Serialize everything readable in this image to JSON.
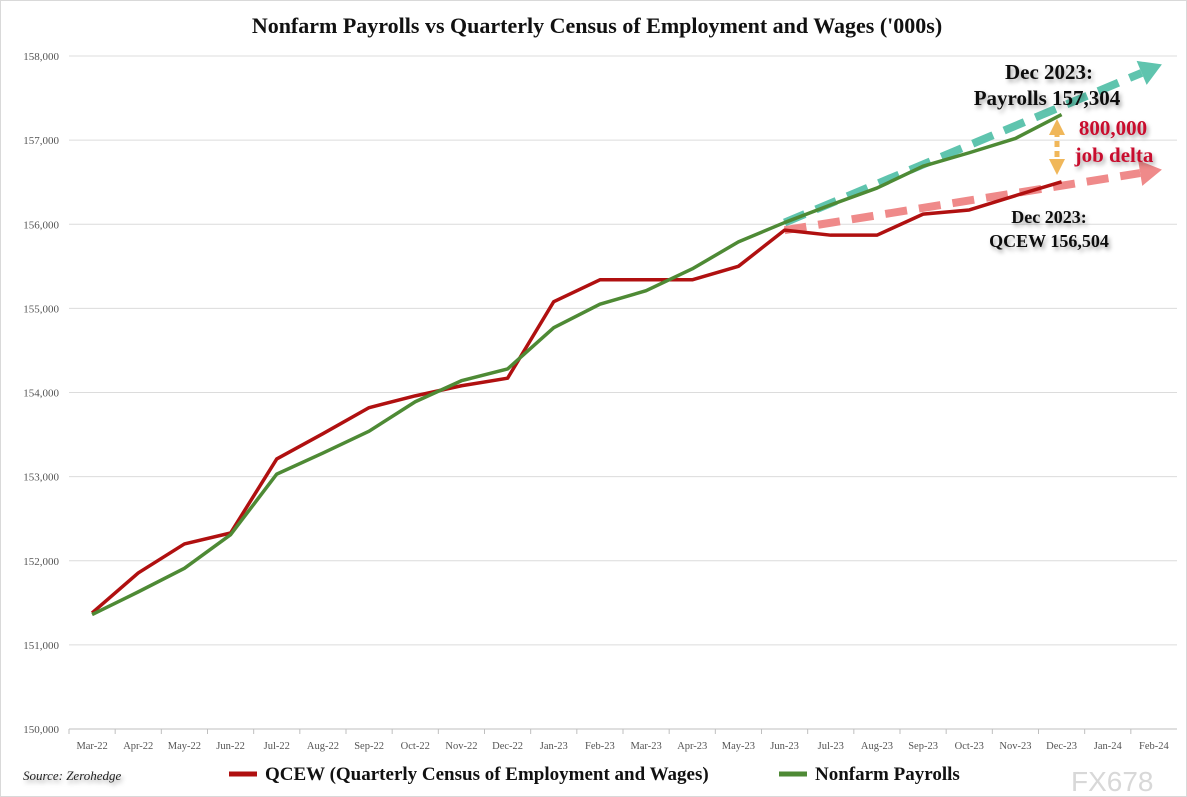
{
  "chart_data": {
    "type": "line",
    "title": "Nonfarm Payrolls vs Quarterly Census of Employment and Wages ('000s)",
    "xlabel": "",
    "ylabel": "",
    "ylim": [
      150000,
      158000
    ],
    "grid": true,
    "legend_position": "bottom",
    "yticks": [
      "150,000",
      "151,000",
      "152,000",
      "153,000",
      "154,000",
      "155,000",
      "156,000",
      "157,000",
      "158,000"
    ],
    "categories": [
      "Mar-22",
      "Apr-22",
      "May-22",
      "Jun-22",
      "Jul-22",
      "Aug-22",
      "Sep-22",
      "Oct-22",
      "Nov-22",
      "Dec-22",
      "Jan-23",
      "Feb-23",
      "Mar-23",
      "Apr-23",
      "May-23",
      "Jun-23",
      "Jul-23",
      "Aug-23",
      "Sep-23",
      "Oct-23",
      "Nov-23",
      "Dec-23",
      "Jan-24",
      "Feb-24"
    ],
    "series": [
      {
        "name": "QCEW (Quarterly Census of Employment and Wages)",
        "color": "#b01010",
        "values": [
          151380,
          151855,
          152200,
          152330,
          153210,
          153510,
          153820,
          153960,
          154080,
          154170,
          155080,
          155340,
          155340,
          155340,
          155500,
          155930,
          155870,
          155870,
          156120,
          156170,
          156340,
          156504,
          null,
          null
        ]
      },
      {
        "name": "Nonfarm Payrolls",
        "color": "#4e8a35",
        "values": [
          151360,
          151630,
          151910,
          152310,
          153030,
          153280,
          153540,
          153890,
          154140,
          154280,
          154770,
          155050,
          155210,
          155470,
          155790,
          156020,
          156230,
          156430,
          156690,
          156850,
          157020,
          157304,
          null,
          null
        ]
      }
    ],
    "trend_arrows": [
      {
        "color": "#5fc4ae",
        "from": [
          "Jun-23",
          156020
        ],
        "to": [
          "Feb-24",
          157900
        ]
      },
      {
        "color": "#ef8a8a",
        "from": [
          "Jun-23",
          155930
        ],
        "to": [
          "Feb-24",
          156650
        ]
      }
    ],
    "delta_arrow_color": "#f0b75a",
    "annotations": {
      "payrolls_line1": "Dec 2023:",
      "payrolls_line2": "Payrolls 157,304",
      "delta_line1": "800,000",
      "delta_line2": "job delta",
      "qcew_line1": "Dec 2023:",
      "qcew_line2": "QCEW 156,504"
    },
    "source": "Source: Zerohedge",
    "watermark": "FX678"
  }
}
